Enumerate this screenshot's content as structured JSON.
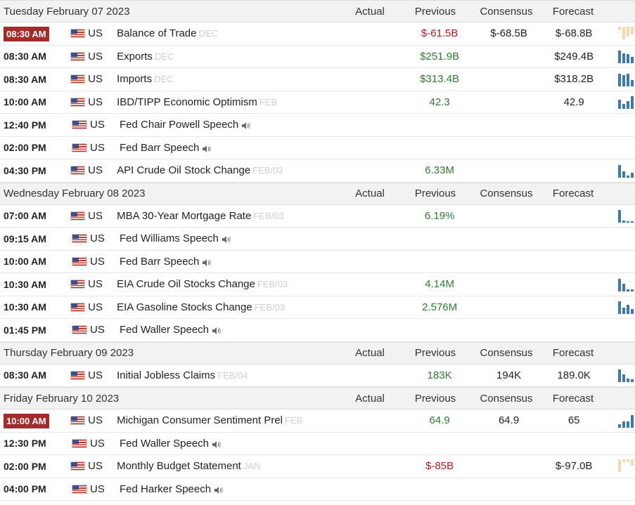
{
  "columns": {
    "actual": "Actual",
    "previous": "Previous",
    "consensus": "Consensus",
    "forecast": "Forecast"
  },
  "days": [
    {
      "title": "Tuesday February 07 2023",
      "rows": [
        {
          "time": "08:30 AM",
          "live": true,
          "country": "US",
          "event": "Balance of Trade",
          "ref": "DEC",
          "speech": false,
          "actual": "",
          "previous": "$-61.5B",
          "prev_class": "neg",
          "consensus": "$-68.5B",
          "forecast": "$-68.8B",
          "spark": [
            0.3,
            1,
            0.8,
            0.6
          ],
          "spark_neg": true
        },
        {
          "time": "08:30 AM",
          "live": false,
          "country": "US",
          "event": "Exports",
          "ref": "DEC",
          "speech": false,
          "actual": "",
          "previous": "$251.9B",
          "prev_class": "pos",
          "consensus": "",
          "forecast": "$249.4B",
          "spark": [
            1,
            0.8,
            0.7,
            0.5
          ],
          "spark_neg": false
        },
        {
          "time": "08:30 AM",
          "live": false,
          "country": "US",
          "event": "Imports",
          "ref": "DEC",
          "speech": false,
          "actual": "",
          "previous": "$313.4B",
          "prev_class": "pos",
          "consensus": "",
          "forecast": "$318.2B",
          "spark": [
            1,
            0.9,
            1,
            0.5
          ],
          "spark_neg": false
        },
        {
          "time": "10:00 AM",
          "live": false,
          "country": "US",
          "event": "IBD/TIPP Economic Optimism",
          "ref": "FEB",
          "speech": false,
          "actual": "",
          "previous": "42.3",
          "prev_class": "pos",
          "consensus": "",
          "forecast": "42.9",
          "spark": [
            0.7,
            0.4,
            0.6,
            1
          ],
          "spark_neg": false
        },
        {
          "time": "12:40 PM",
          "live": false,
          "country": "US",
          "event": "Fed Chair Powell Speech",
          "ref": "",
          "speech": true,
          "actual": "",
          "previous": "",
          "prev_class": "",
          "consensus": "",
          "forecast": "",
          "spark": [],
          "spark_neg": false
        },
        {
          "time": "02:00 PM",
          "live": false,
          "country": "US",
          "event": "Fed Barr Speech",
          "ref": "",
          "speech": true,
          "actual": "",
          "previous": "",
          "prev_class": "",
          "consensus": "",
          "forecast": "",
          "spark": [],
          "spark_neg": false
        },
        {
          "time": "04:30 PM",
          "live": false,
          "country": "US",
          "event": "API Crude Oil Stock Change",
          "ref": "FEB/03",
          "speech": false,
          "actual": "",
          "previous": "6.33M",
          "prev_class": "pos",
          "consensus": "",
          "forecast": "",
          "spark": [
            1,
            0.5,
            0.15,
            0.4
          ],
          "spark_neg": false
        }
      ]
    },
    {
      "title": "Wednesday February 08 2023",
      "rows": [
        {
          "time": "07:00 AM",
          "live": false,
          "country": "US",
          "event": "MBA 30-Year Mortgage Rate",
          "ref": "FEB/03",
          "speech": false,
          "actual": "",
          "previous": "6.19%",
          "prev_class": "pos",
          "consensus": "",
          "forecast": "",
          "spark": [
            1,
            0.15,
            0.12,
            0.12
          ],
          "spark_neg": false
        },
        {
          "time": "09:15 AM",
          "live": false,
          "country": "US",
          "event": "Fed Williams Speech",
          "ref": "",
          "speech": true,
          "actual": "",
          "previous": "",
          "prev_class": "",
          "consensus": "",
          "forecast": "",
          "spark": [],
          "spark_neg": false
        },
        {
          "time": "10:00 AM",
          "live": false,
          "country": "US",
          "event": "Fed Barr Speech",
          "ref": "",
          "speech": true,
          "actual": "",
          "previous": "",
          "prev_class": "",
          "consensus": "",
          "forecast": "",
          "spark": [],
          "spark_neg": false
        },
        {
          "time": "10:30 AM",
          "live": false,
          "country": "US",
          "event": "EIA Crude Oil Stocks Change",
          "ref": "FEB/03",
          "speech": false,
          "actual": "",
          "previous": "4.14M",
          "prev_class": "pos",
          "consensus": "",
          "forecast": "",
          "spark": [
            1,
            0.6,
            0.15,
            0.15
          ],
          "spark_neg": false
        },
        {
          "time": "10:30 AM",
          "live": false,
          "country": "US",
          "event": "EIA Gasoline Stocks Change",
          "ref": "FEB/03",
          "speech": false,
          "actual": "",
          "previous": "2.576M",
          "prev_class": "pos",
          "consensus": "",
          "forecast": "",
          "spark": [
            1,
            0.5,
            0.7,
            0.4
          ],
          "spark_neg": false
        },
        {
          "time": "01:45 PM",
          "live": false,
          "country": "US",
          "event": "Fed Waller Speech",
          "ref": "",
          "speech": true,
          "actual": "",
          "previous": "",
          "prev_class": "",
          "consensus": "",
          "forecast": "",
          "spark": [],
          "spark_neg": false
        }
      ]
    },
    {
      "title": "Thursday February 09 2023",
      "rows": [
        {
          "time": "08:30 AM",
          "live": false,
          "country": "US",
          "event": "Initial Jobless Claims",
          "ref": "FEB/04",
          "speech": false,
          "actual": "",
          "previous": "183K",
          "prev_class": "pos",
          "consensus": "194K",
          "forecast": "189.0K",
          "spark": [
            1,
            0.6,
            0.3,
            0.2
          ],
          "spark_neg": false
        }
      ]
    },
    {
      "title": "Friday February 10 2023",
      "rows": [
        {
          "time": "10:00 AM",
          "live": true,
          "country": "US",
          "event": "Michigan Consumer Sentiment Prel",
          "ref": "FEB",
          "speech": false,
          "actual": "",
          "previous": "64.9",
          "prev_class": "pos",
          "consensus": "64.9",
          "forecast": "65",
          "spark": [
            0.3,
            0.5,
            0.5,
            1
          ],
          "spark_neg": false
        },
        {
          "time": "12:30 PM",
          "live": false,
          "country": "US",
          "event": "Fed Waller Speech",
          "ref": "",
          "speech": true,
          "actual": "",
          "previous": "",
          "prev_class": "",
          "consensus": "",
          "forecast": "",
          "spark": [],
          "spark_neg": false
        },
        {
          "time": "02:00 PM",
          "live": false,
          "country": "US",
          "event": "Monthly Budget Statement",
          "ref": "JAN",
          "speech": false,
          "actual": "",
          "previous": "$-85B",
          "prev_class": "neg",
          "consensus": "",
          "forecast": "$-97.0B",
          "spark": [
            1,
            0.2,
            0.2,
            0.5
          ],
          "spark_neg": true
        },
        {
          "time": "04:00 PM",
          "live": false,
          "country": "US",
          "event": "Fed Harker Speech",
          "ref": "",
          "speech": true,
          "actual": "",
          "previous": "",
          "prev_class": "",
          "consensus": "",
          "forecast": "",
          "spark": [],
          "spark_neg": false
        }
      ]
    }
  ]
}
